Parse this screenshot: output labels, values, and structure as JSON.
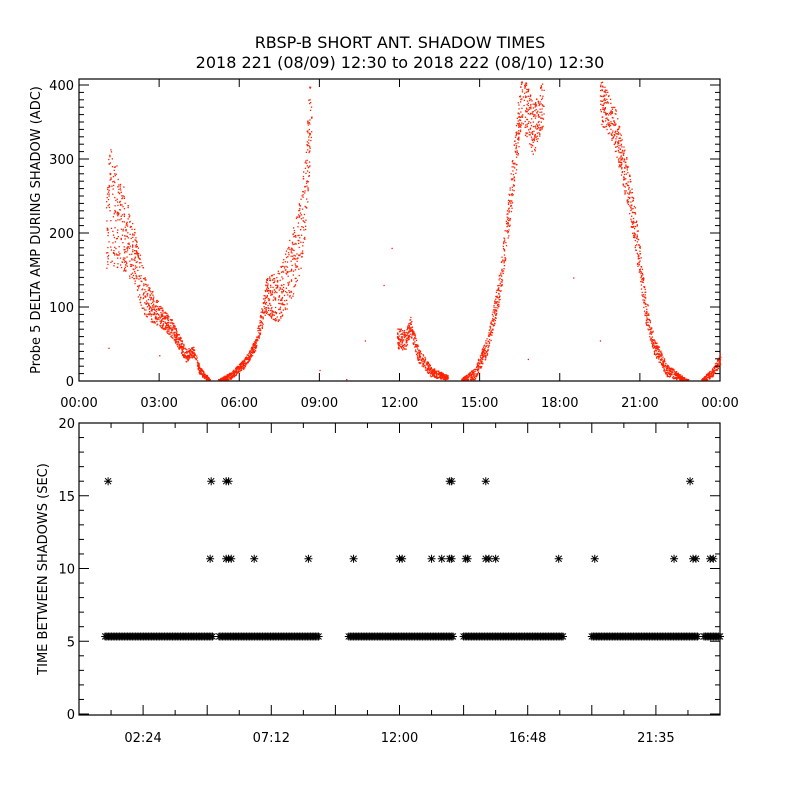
{
  "title": "RBSP-B SHORT ANT. SHADOW TIMES",
  "subtitle": "2018 221 (08/09) 12:30 to 2018 222 (08/10) 12:30",
  "colors": {
    "top_points": "#ff2000",
    "bottom_points": "#000000",
    "axes": "#000000"
  },
  "chart_data": [
    {
      "type": "scatter",
      "ylabel": "Probe 5 DELTA AMP DURING SHADOW (ADC)",
      "xlabel": "",
      "xlim_hours": [
        0,
        24
      ],
      "ylim": [
        0,
        400
      ],
      "x_tick_labels": [
        "00:00",
        "03:00",
        "06:00",
        "09:00",
        "12:00",
        "15:00",
        "18:00",
        "21:00",
        "00:00"
      ],
      "x_tick_hours": [
        0,
        3,
        6,
        9,
        12,
        15,
        18,
        21,
        24
      ],
      "y_tick_labels": [
        "0",
        "100",
        "200",
        "300",
        "400"
      ],
      "y_ticks": [
        0,
        100,
        200,
        300,
        400
      ],
      "series_trend_note": "trend points [hour, ADC] with scatter spread",
      "arcs": [
        {
          "trend": [
            [
              1.0,
              240
            ],
            [
              1.5,
              220
            ],
            [
              2.0,
              175
            ],
            [
              2.5,
              110
            ],
            [
              3.0,
              90
            ],
            [
              3.5,
              70
            ],
            [
              4.0,
              35
            ],
            [
              4.3,
              40
            ],
            [
              4.5,
              15
            ],
            [
              4.9,
              0
            ]
          ],
          "spread": [
            [
              1.0,
              90
            ],
            [
              2.0,
              40
            ],
            [
              3.0,
              15
            ],
            [
              4.9,
              3
            ]
          ]
        },
        {
          "trend": [
            [
              5.2,
              0
            ],
            [
              5.7,
              8
            ],
            [
              6.2,
              25
            ],
            [
              6.6,
              50
            ],
            [
              6.8,
              80
            ],
            [
              7.0,
              115
            ],
            [
              7.5,
              115
            ],
            [
              8.0,
              160
            ],
            [
              8.3,
              200
            ],
            [
              8.5,
              270
            ],
            [
              8.7,
              400
            ]
          ],
          "spread": [
            [
              5.2,
              3
            ],
            [
              6.6,
              8
            ],
            [
              7.2,
              30
            ],
            [
              8.7,
              60
            ]
          ]
        },
        {
          "trend": [
            [
              11.9,
              60
            ],
            [
              12.2,
              55
            ],
            [
              12.4,
              75
            ],
            [
              12.7,
              35
            ],
            [
              13.2,
              12
            ],
            [
              13.8,
              5
            ]
          ],
          "spread": [
            [
              11.9,
              15
            ],
            [
              13.8,
              3
            ]
          ]
        },
        {
          "trend": [
            [
              14.3,
              0
            ],
            [
              14.8,
              10
            ],
            [
              15.3,
              50
            ],
            [
              15.7,
              120
            ],
            [
              16.0,
              200
            ],
            [
              16.3,
              300
            ],
            [
              16.6,
              400
            ]
          ],
          "spread": [
            [
              14.3,
              3
            ],
            [
              15.5,
              15
            ],
            [
              16.6,
              40
            ]
          ]
        },
        {
          "trend": [
            [
              16.6,
              380
            ],
            [
              17.0,
              340
            ],
            [
              17.4,
              380
            ]
          ],
          "spread": [
            [
              16.6,
              40
            ],
            [
              17.4,
              30
            ]
          ]
        },
        {
          "trend": [
            [
              19.5,
              380
            ],
            [
              20.0,
              350
            ],
            [
              20.5,
              270
            ],
            [
              20.8,
              210
            ],
            [
              21.2,
              100
            ],
            [
              21.5,
              50
            ],
            [
              22.0,
              15
            ],
            [
              22.5,
              5
            ],
            [
              22.8,
              0
            ]
          ],
          "spread": [
            [
              19.5,
              30
            ],
            [
              20.8,
              30
            ],
            [
              21.5,
              12
            ],
            [
              22.8,
              2
            ]
          ]
        },
        {
          "trend": [
            [
              23.3,
              0
            ],
            [
              23.7,
              12
            ],
            [
              24.0,
              30
            ]
          ],
          "spread": [
            [
              23.3,
              3
            ],
            [
              24.0,
              8
            ]
          ]
        }
      ],
      "outliers": [
        [
          1.1,
          45
        ],
        [
          3.0,
          35
        ],
        [
          9.0,
          15
        ],
        [
          10.0,
          0
        ],
        [
          10.7,
          55
        ],
        [
          11.4,
          130
        ],
        [
          11.7,
          180
        ],
        [
          13.7,
          0
        ],
        [
          16.8,
          30
        ],
        [
          18.5,
          140
        ],
        [
          19.5,
          55
        ]
      ]
    },
    {
      "type": "scatter",
      "ylabel": "TIME BETWEEN SHADOWS (SEC)",
      "xlabel": "",
      "xlim_hours": [
        0,
        24
      ],
      "ylim": [
        0,
        20
      ],
      "x_tick_labels": [
        "02:24",
        "07:12",
        "12:00",
        "16:48",
        "21:35"
      ],
      "x_tick_hours": [
        2.4,
        7.2,
        12.0,
        16.8,
        21.6
      ],
      "y_tick_labels": [
        "0",
        "5",
        "10",
        "15",
        "20"
      ],
      "y_ticks": [
        0,
        5,
        10,
        15,
        20
      ],
      "baseline_value": 5.33,
      "baseline_segments_hours": [
        [
          0.98,
          5.0
        ],
        [
          5.25,
          9.0
        ],
        [
          10.1,
          14.06
        ],
        [
          14.4,
          18.15
        ],
        [
          19.2,
          23.2
        ],
        [
          23.4,
          24.0
        ]
      ],
      "points_10_7": {
        "value": 10.67,
        "hours": [
          4.91,
          5.51,
          5.6,
          5.7,
          6.56,
          8.59,
          10.28,
          12.0,
          12.1,
          13.2,
          13.58,
          13.88,
          13.95,
          14.48,
          14.55,
          15.23,
          15.35,
          15.6,
          17.96,
          19.31,
          22.28,
          22.99,
          23.1,
          23.63,
          23.75
        ]
      },
      "points_16": {
        "value": 16.0,
        "hours": [
          1.09,
          4.95,
          5.51,
          5.6,
          13.88,
          13.95,
          15.23,
          22.88
        ]
      }
    }
  ]
}
